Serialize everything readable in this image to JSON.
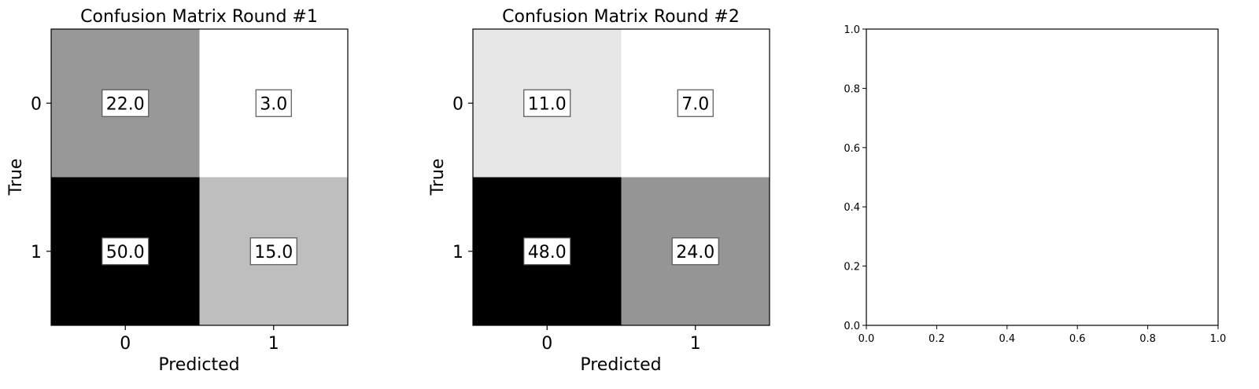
{
  "chart_data": [
    {
      "type": "heatmap",
      "title": "Confusion Matrix Round #1",
      "xlabel": "Predicted",
      "ylabel": "True",
      "x_categories": [
        "0",
        "1"
      ],
      "y_categories": [
        "0",
        "1"
      ],
      "values": [
        [
          22.0,
          3.0
        ],
        [
          50.0,
          15.0
        ]
      ],
      "value_labels": [
        [
          "22.0",
          "3.0"
        ],
        [
          "50.0",
          "15.0"
        ]
      ],
      "colormap": "gray_r"
    },
    {
      "type": "heatmap",
      "title": "Confusion Matrix Round #2",
      "xlabel": "Predicted",
      "ylabel": "True",
      "x_categories": [
        "0",
        "1"
      ],
      "y_categories": [
        "0",
        "1"
      ],
      "values": [
        [
          11.0,
          7.0
        ],
        [
          48.0,
          24.0
        ]
      ],
      "value_labels": [
        [
          "11.0",
          "7.0"
        ],
        [
          "48.0",
          "24.0"
        ]
      ],
      "colormap": "gray_r"
    },
    {
      "type": "scatter",
      "title": "",
      "xlabel": "",
      "ylabel": "",
      "xlim": [
        0.0,
        1.0
      ],
      "ylim": [
        0.0,
        1.0
      ],
      "x_ticks": [
        "0.0",
        "0.2",
        "0.4",
        "0.6",
        "0.8",
        "1.0"
      ],
      "y_ticks": [
        "0.0",
        "0.2",
        "0.4",
        "0.6",
        "0.8",
        "1.0"
      ],
      "series": []
    }
  ]
}
